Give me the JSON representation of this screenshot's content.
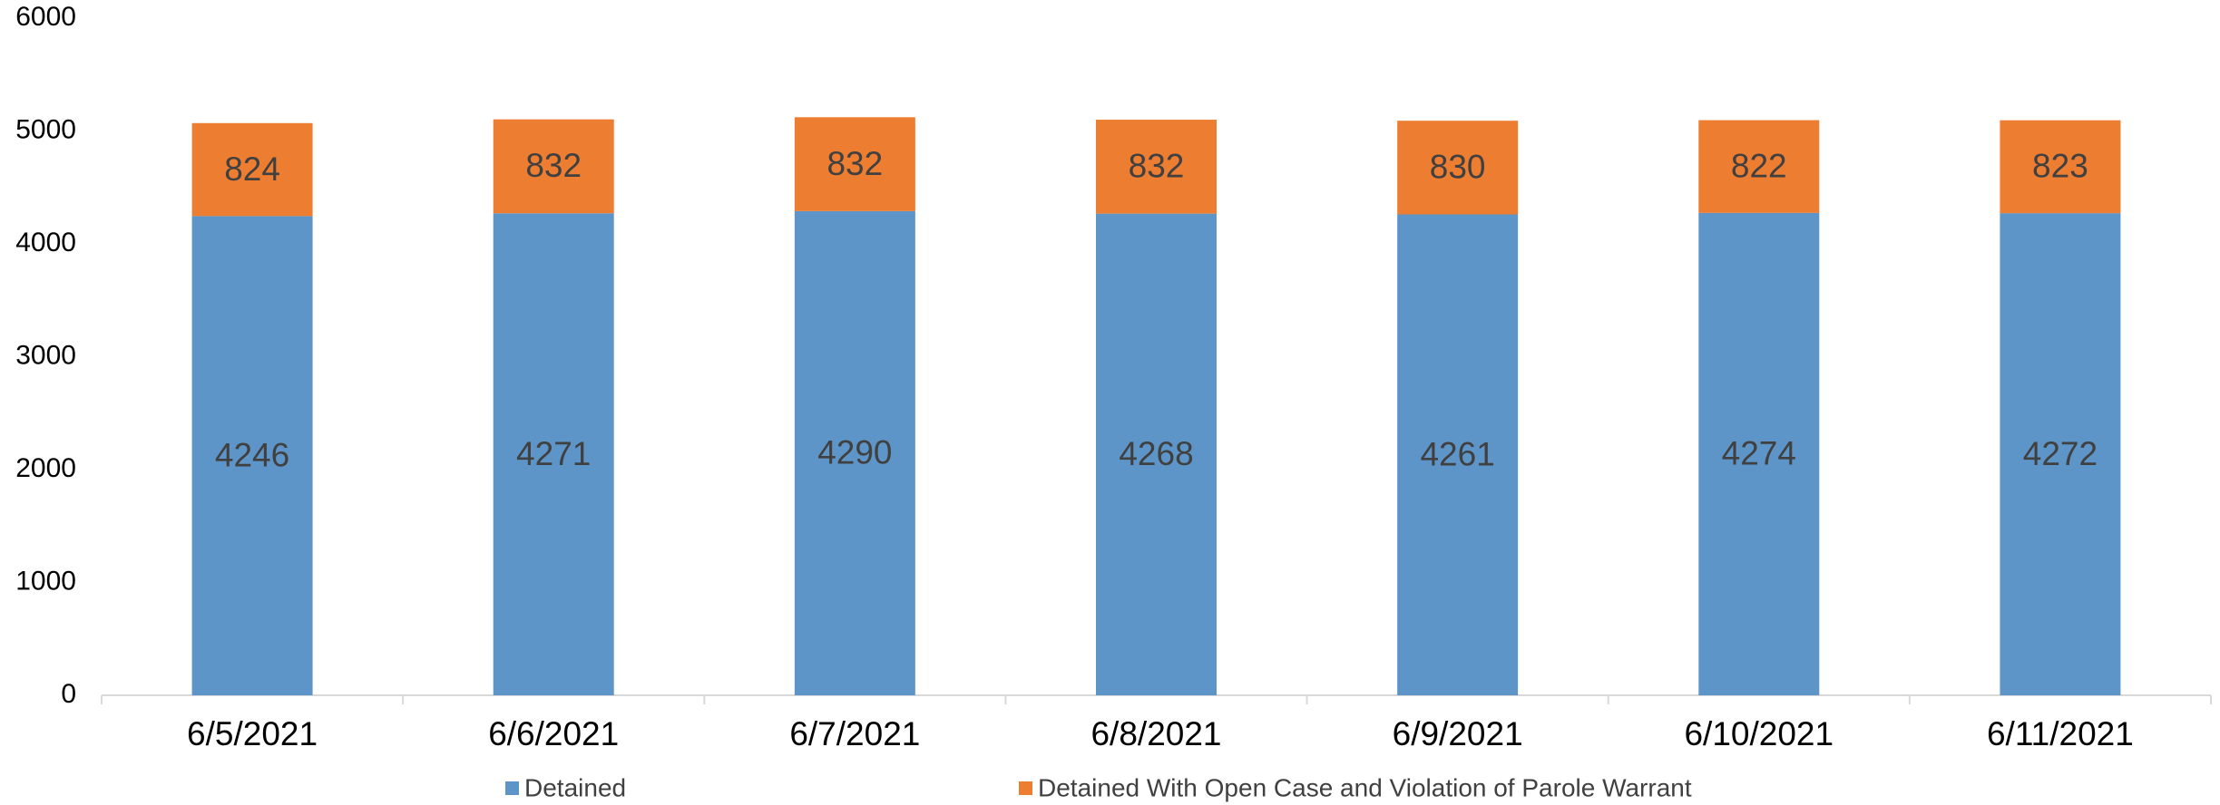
{
  "chart_data": {
    "type": "stacked_bar",
    "categories": [
      "6/5/2021",
      "6/6/2021",
      "6/7/2021",
      "6/8/2021",
      "6/9/2021",
      "6/10/2021",
      "6/11/2021"
    ],
    "series": [
      {
        "name": "Detained",
        "color": "#5e95c8",
        "values": [
          4246,
          4271,
          4290,
          4268,
          4261,
          4274,
          4272
        ]
      },
      {
        "name": "Detained With Open Case and Violation of Parole Warrant",
        "color": "#ed7d31",
        "values": [
          824,
          832,
          832,
          832,
          830,
          822,
          823
        ]
      }
    ],
    "ylim": [
      0,
      6000
    ],
    "yticks": [
      0,
      1000,
      2000,
      3000,
      4000,
      5000,
      6000
    ],
    "grid": false,
    "legend": "bottom"
  }
}
